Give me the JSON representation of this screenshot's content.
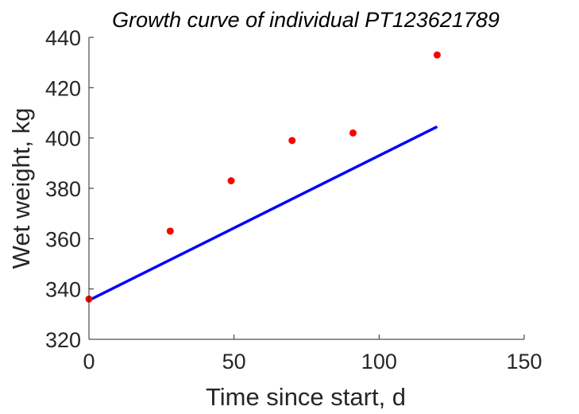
{
  "chart_data": {
    "type": "scatter",
    "title": "Growth curve of individual PT123621789",
    "xlabel": "Time since start, d",
    "ylabel": "Wet weight, kg",
    "xlim": [
      0,
      150
    ],
    "ylim": [
      320,
      440
    ],
    "xticks": [
      "0",
      "50",
      "100",
      "150"
    ],
    "yticks": [
      "320",
      "340",
      "360",
      "380",
      "400",
      "420",
      "440"
    ],
    "grid": false,
    "series": [
      {
        "kind": "points",
        "color": "#ff0000",
        "x": [
          0,
          28,
          49,
          70,
          91,
          120
        ],
        "y": [
          336,
          363,
          383,
          399,
          402,
          433
        ]
      },
      {
        "kind": "line",
        "color": "#0000ff",
        "x": [
          0,
          120
        ],
        "y": [
          335.5,
          404.5
        ]
      }
    ],
    "axis_color": "#262626"
  }
}
